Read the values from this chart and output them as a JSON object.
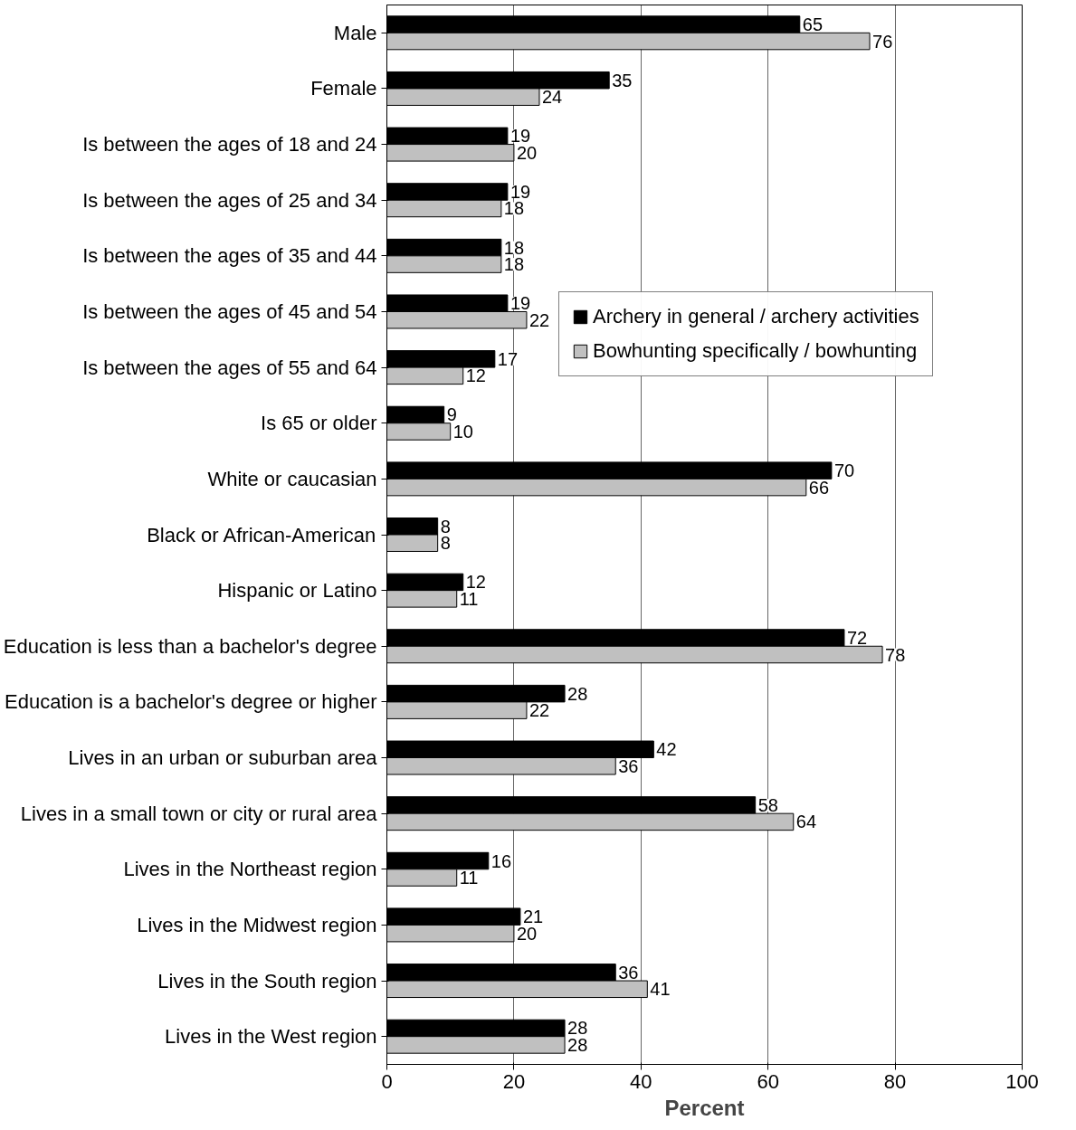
{
  "chart_data": {
    "type": "bar",
    "orientation": "horizontal",
    "xlabel": "Percent",
    "categories": [
      "Male",
      "Female",
      "Is between the ages of 18 and 24",
      "Is between the ages of 25 and 34",
      "Is between the ages of 35 and 44",
      "Is between the ages of 45 and 54",
      "Is between the ages of 55 and 64",
      "Is 65 or older",
      "White or caucasian",
      "Black or African-American",
      "Hispanic or Latino",
      "Education is less than a bachelor's degree",
      "Education is a bachelor's degree or higher",
      "Lives in an urban or suburban area",
      "Lives in a small town or city or rural area",
      "Lives in the Northeast region",
      "Lives in the Midwest region",
      "Lives in the South region",
      "Lives in the West region"
    ],
    "series": [
      {
        "name": "Archery in general / archery activities",
        "color": "#000000",
        "values": [
          65,
          35,
          19,
          19,
          18,
          19,
          17,
          9,
          70,
          8,
          12,
          72,
          28,
          42,
          58,
          16,
          21,
          36,
          28
        ]
      },
      {
        "name": "Bowhunting specifically / bowhunting",
        "color": "#c0c0c0",
        "values": [
          76,
          24,
          20,
          18,
          18,
          22,
          12,
          10,
          66,
          8,
          11,
          78,
          22,
          36,
          64,
          11,
          20,
          41,
          28
        ]
      }
    ],
    "xlim": [
      0,
      100
    ],
    "xticks": [
      0,
      20,
      40,
      60,
      80,
      100
    ],
    "grid": "x",
    "legend": "top right",
    "data_labels": true
  }
}
